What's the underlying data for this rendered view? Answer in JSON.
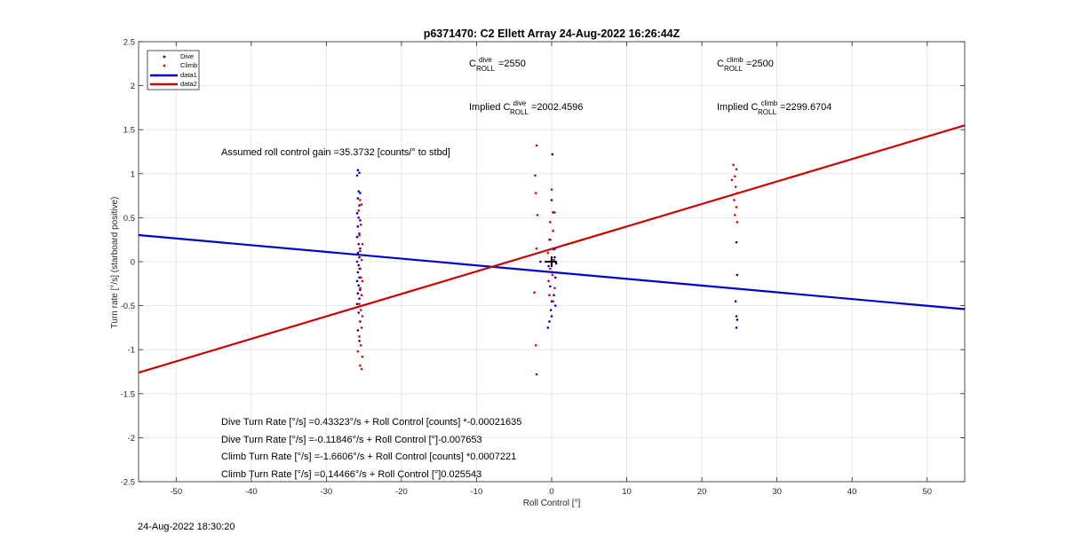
{
  "chart_data": {
    "type": "scatter",
    "title": "p6371470: C2 Ellett Array 24-Aug-2022 16:26:44Z",
    "xlabel": "Roll Control [°]",
    "ylabel": "Turn rate [°/s] (starboard positive)",
    "xlim": [
      -55,
      55
    ],
    "ylim": [
      -2.5,
      2.5
    ],
    "xticks": [
      -50,
      -40,
      -30,
      -20,
      -10,
      0,
      10,
      20,
      30,
      40,
      50
    ],
    "yticks": [
      -2.5,
      -2,
      -1.5,
      -1,
      -0.5,
      0,
      0.5,
      1,
      1.5,
      2,
      2.5
    ],
    "grid": true,
    "legend_position": "top-left",
    "series": [
      {
        "name": "Dive",
        "kind": "points",
        "color": "#0000cc",
        "points": [
          [
            -25.8,
            1.04
          ],
          [
            -25.6,
            1.01
          ],
          [
            -25.9,
            0.98
          ],
          [
            -25.7,
            0.8
          ],
          [
            -25.5,
            0.78
          ],
          [
            -25.8,
            0.72
          ],
          [
            -25.6,
            0.64
          ],
          [
            -25.9,
            0.55
          ],
          [
            -25.7,
            0.5
          ],
          [
            -25.5,
            0.47
          ],
          [
            -25.8,
            0.4
          ],
          [
            -25.6,
            0.32
          ],
          [
            -25.9,
            0.28
          ],
          [
            -25.7,
            0.2
          ],
          [
            -25.5,
            0.15
          ],
          [
            -25.8,
            0.1
          ],
          [
            -25.6,
            0.05
          ],
          [
            -25.9,
            0.0
          ],
          [
            -25.7,
            -0.04
          ],
          [
            -25.5,
            -0.08
          ],
          [
            -25.8,
            -0.12
          ],
          [
            -25.6,
            -0.18
          ],
          [
            -25.9,
            -0.22
          ],
          [
            -25.7,
            -0.27
          ],
          [
            -25.5,
            -0.32
          ],
          [
            -25.8,
            -0.36
          ],
          [
            -25.6,
            -0.42
          ],
          [
            -25.9,
            -0.48
          ],
          [
            -25.7,
            -0.58
          ],
          [
            -25.5,
            -0.68
          ],
          [
            -25.8,
            -0.78
          ],
          [
            -25.6,
            -0.9
          ],
          [
            0.1,
            1.22
          ],
          [
            0.0,
            0.7
          ],
          [
            0.2,
            0.56
          ],
          [
            -0.2,
            0.25
          ],
          [
            0.3,
            0.14
          ],
          [
            -1.5,
            0.0
          ],
          [
            -0.8,
            0.0
          ],
          [
            0.4,
            0.05
          ],
          [
            0.6,
            -0.02
          ],
          [
            -0.4,
            -0.05
          ],
          [
            0.1,
            -0.12
          ],
          [
            0.5,
            -0.18
          ],
          [
            -0.2,
            -0.28
          ],
          [
            0.3,
            -0.38
          ],
          [
            0.0,
            -0.45
          ],
          [
            0.5,
            -0.5
          ],
          [
            -0.1,
            -0.55
          ],
          [
            0.0,
            -0.62
          ],
          [
            -0.3,
            -0.68
          ],
          [
            -0.5,
            -0.75
          ],
          [
            24.6,
            0.22
          ],
          [
            24.7,
            -0.15
          ],
          [
            24.5,
            -0.45
          ],
          [
            24.6,
            -0.62
          ],
          [
            24.7,
            -0.66
          ],
          [
            24.6,
            -0.75
          ]
        ]
      },
      {
        "name": "Climb",
        "kind": "points",
        "color": "#dd0000",
        "points": [
          [
            -25.5,
            0.7
          ],
          [
            -25.3,
            0.65
          ],
          [
            -25.7,
            0.58
          ],
          [
            -25.4,
            0.42
          ],
          [
            -25.6,
            0.3
          ],
          [
            -25.2,
            0.2
          ],
          [
            -25.5,
            0.12
          ],
          [
            -25.3,
            0.02
          ],
          [
            -25.6,
            -0.08
          ],
          [
            -25.4,
            -0.18
          ],
          [
            -25.2,
            -0.22
          ],
          [
            -25.5,
            -0.3
          ],
          [
            -25.3,
            -0.38
          ],
          [
            -25.6,
            -0.48
          ],
          [
            -25.4,
            -0.55
          ],
          [
            -25.2,
            -0.62
          ],
          [
            -25.5,
            -0.68
          ],
          [
            -25.3,
            -0.75
          ],
          [
            -25.6,
            -0.85
          ],
          [
            -25.4,
            -0.95
          ],
          [
            -25.8,
            -1.02
          ],
          [
            -25.2,
            -1.08
          ],
          [
            -25.5,
            -1.18
          ],
          [
            -25.3,
            -1.22
          ],
          [
            -2.0,
            1.32
          ],
          [
            -2.2,
            0.98
          ],
          [
            -2.1,
            0.78
          ],
          [
            -1.9,
            0.53
          ],
          [
            -2.0,
            0.15
          ],
          [
            -2.3,
            -0.35
          ],
          [
            -2.1,
            -0.95
          ],
          [
            -2.0,
            -1.28
          ],
          [
            0.0,
            0.82
          ],
          [
            0.4,
            0.56
          ],
          [
            -0.2,
            0.45
          ],
          [
            0.2,
            0.35
          ],
          [
            -0.3,
            0.25
          ],
          [
            0.5,
            0.15
          ],
          [
            -0.5,
            0.1
          ],
          [
            0.3,
            0.02
          ],
          [
            -0.2,
            -0.08
          ],
          [
            0.1,
            -0.15
          ],
          [
            -0.4,
            -0.22
          ],
          [
            0.4,
            -0.3
          ],
          [
            -0.3,
            -0.38
          ],
          [
            0.2,
            -0.45
          ],
          [
            24.2,
            1.1
          ],
          [
            24.6,
            1.05
          ],
          [
            24.4,
            0.97
          ],
          [
            24.0,
            0.93
          ],
          [
            24.5,
            0.85
          ],
          [
            24.7,
            0.78
          ],
          [
            24.3,
            0.7
          ],
          [
            24.6,
            0.62
          ],
          [
            24.4,
            0.53
          ],
          [
            24.7,
            0.45
          ]
        ]
      },
      {
        "name": "data1",
        "kind": "line",
        "color": "#0000cc",
        "intercept": -0.11846,
        "slope": -0.007653
      },
      {
        "name": "data2",
        "kind": "line",
        "color": "#cc0000",
        "intercept": 0.14466,
        "slope": 0.025543
      }
    ],
    "marker": {
      "symbol": "+",
      "x": 0,
      "y": 0
    },
    "annotations": {
      "c_dive_prefix": "C",
      "c_dive_sup": "dive",
      "c_dive_sub": "ROLL",
      "c_dive_value": "=2550",
      "c_climb_prefix": "C",
      "c_climb_sup": "climb",
      "c_climb_sub": "ROLL",
      "c_climb_value": "=2500",
      "implied_dive_prefix": "Implied C",
      "implied_dive_sup": "dive",
      "implied_dive_sub": "ROLL",
      "implied_dive_value": "=2002.4596",
      "implied_climb_prefix": "Implied C",
      "implied_climb_sup": "climb",
      "implied_climb_sub": "ROLL",
      "implied_climb_value": "=2299.6704",
      "gain": "Assumed roll control gain =35.3732 [counts/° to stbd]",
      "dive_counts": "Dive Turn Rate [°/s] =0.43323°/s + Roll Control [counts] *-0.00021635",
      "dive_deg": "Dive Turn Rate [°/s] =-0.11846°/s + Roll Control [°]-0.007653",
      "climb_counts": "Climb Turn Rate [°/s] =-1.6606°/s + Roll Control [counts] *0.0007221",
      "climb_deg": "Climb Turn Rate [°/s] =0.14466°/s + Roll Control [°]0.025543"
    }
  },
  "footer": {
    "timestamp": "24-Aug-2022 18:30:20"
  }
}
